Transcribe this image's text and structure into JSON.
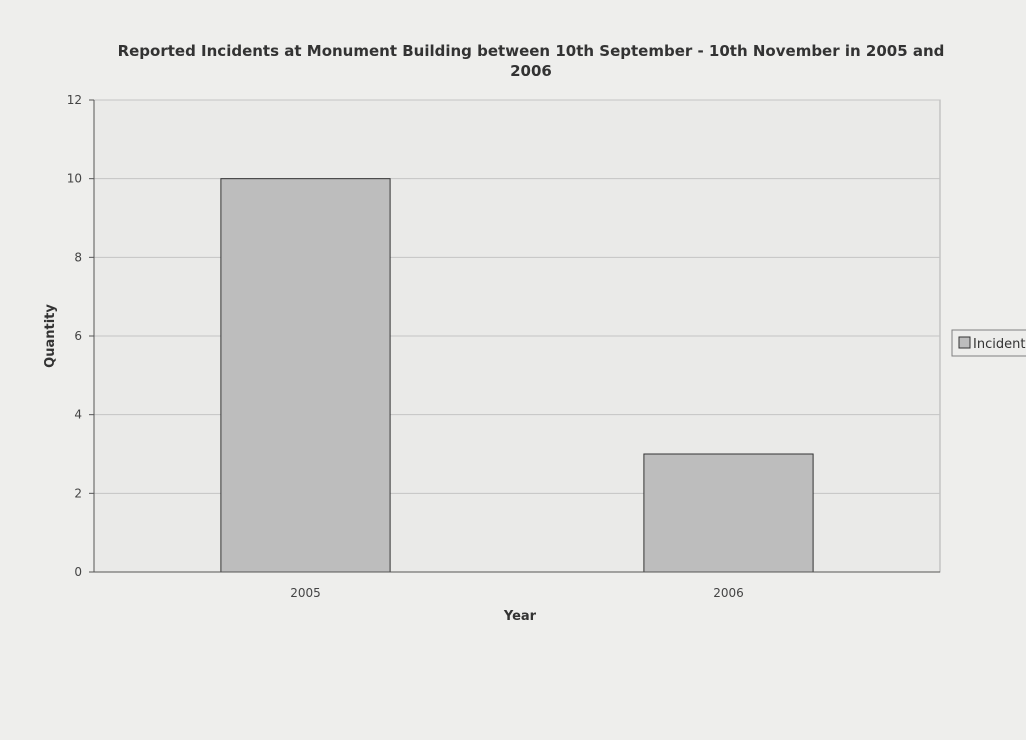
{
  "chart_data": {
    "type": "bar",
    "title_line1": "Reported Incidents at Monument Building between 10th September - 10th November in 2005 and",
    "title_line2": "2006",
    "xlabel": "Year",
    "ylabel": "Quantity",
    "categories": [
      "2005",
      "2006"
    ],
    "series": [
      {
        "name": "Incident",
        "values": [
          10,
          3
        ],
        "color": "#bdbdbd"
      }
    ],
    "ylim": [
      0,
      12
    ],
    "yticks": [
      0,
      2,
      4,
      6,
      8,
      10,
      12
    ],
    "grid": true,
    "legend_position": "right"
  }
}
